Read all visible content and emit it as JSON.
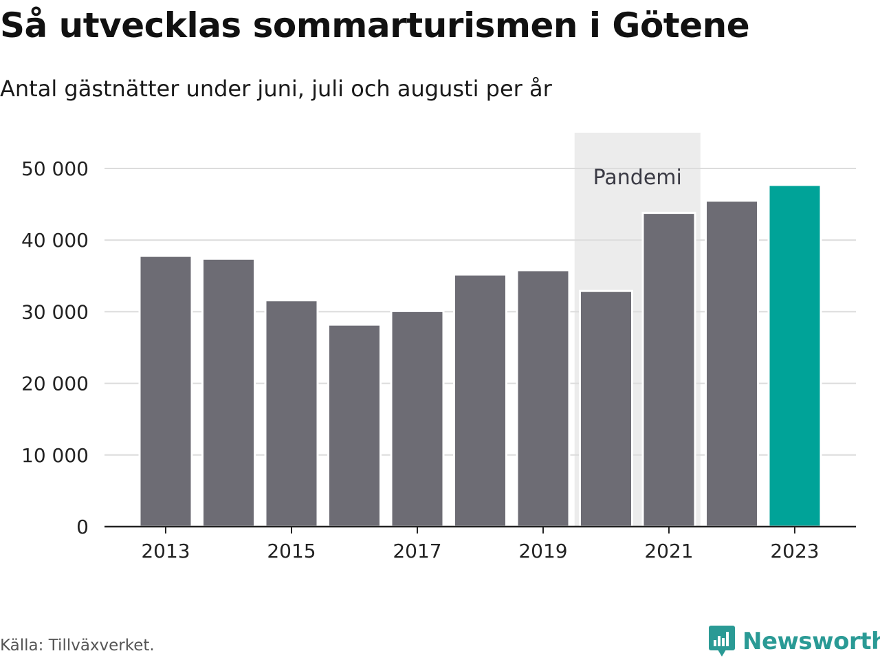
{
  "header": {
    "title": "Så utvecklas sommarturismen i Götene",
    "subtitle": "Antal gästnätter under juni, juli och augusti per år"
  },
  "footer": {
    "source": "Källa: Tillväxverket.",
    "brand_name": "Newsworthy",
    "brand_icon": "chart-bubble-icon"
  },
  "colors": {
    "bar": "#6d6c74",
    "highlight": "#00a398",
    "band": "#ececec",
    "grid": "#dcdcdc",
    "axis": "#222222",
    "brand": "#2a9a95"
  },
  "chart_data": {
    "type": "bar",
    "title": "Så utvecklas sommarturismen i Götene",
    "subtitle": "Antal gästnätter under juni, juli och augusti per år",
    "xlabel": "",
    "ylabel": "",
    "categories": [
      "2013",
      "2014",
      "2015",
      "2016",
      "2017",
      "2018",
      "2019",
      "2020",
      "2021",
      "2022",
      "2023"
    ],
    "values": [
      37800,
      37400,
      31600,
      28200,
      30100,
      35200,
      35800,
      32900,
      43800,
      45500,
      47700
    ],
    "highlight_category": "2023",
    "ylim": [
      0,
      50000
    ],
    "yticks": [
      0,
      10000,
      20000,
      30000,
      40000,
      50000
    ],
    "ytick_labels": [
      "0",
      "10 000",
      "20 000",
      "30 000",
      "40 000",
      "50 000"
    ],
    "xtick_labels": [
      "2013",
      "2015",
      "2017",
      "2019",
      "2021",
      "2023"
    ],
    "annotation": {
      "label": "Pandemi",
      "from": "2020",
      "to": "2021"
    },
    "grid": true,
    "legend": "none"
  }
}
